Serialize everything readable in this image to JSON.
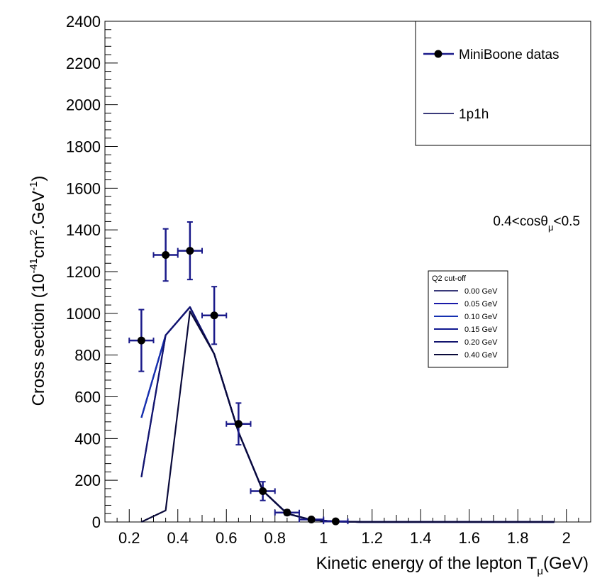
{
  "chart_data": {
    "type": "line",
    "xlabel": "Kinetic energy of the lepton T",
    "xlabel_sub": "μ",
    "xlabel_unit": "(GeV)",
    "ylabel_main": "Cross section (10",
    "ylabel_exp1": "-41",
    "ylabel_mid": "cm",
    "ylabel_exp2": "2",
    "ylabel_mid2": ".GeV",
    "ylabel_exp3": "-1",
    "ylabel_end": ")",
    "xlim": [
      0.1,
      2.1
    ],
    "ylim": [
      0,
      2400
    ],
    "x_ticks": [
      "0.2",
      "0.4",
      "0.6",
      "0.8",
      "1",
      "1.2",
      "1.4",
      "1.6",
      "1.8",
      "2"
    ],
    "x_tick_values": [
      0.2,
      0.4,
      0.6,
      0.8,
      1.0,
      1.2,
      1.4,
      1.6,
      1.8,
      2.0
    ],
    "y_ticks": [
      "0",
      "200",
      "400",
      "600",
      "800",
      "1000",
      "1200",
      "1400",
      "1600",
      "1800",
      "2000",
      "2200",
      "2400"
    ],
    "y_tick_values": [
      0,
      200,
      400,
      600,
      800,
      1000,
      1200,
      1400,
      1600,
      1800,
      2000,
      2200,
      2400
    ],
    "annotation": {
      "pre": "0.4<cosθ",
      "sub": "μ",
      "post": "<0.5"
    },
    "main_legend": [
      {
        "label": "MiniBoone datas",
        "marker": "circle"
      },
      {
        "label": "1p1h",
        "marker": "line"
      }
    ],
    "qcut_legend": {
      "title": "Q2 cut-off",
      "entries": [
        {
          "label": "0.00 GeV",
          "color": "#3a3a7a"
        },
        {
          "label": "0.05 GeV",
          "color": "#1a1aa8"
        },
        {
          "label": "0.10 GeV",
          "color": "#1530b0"
        },
        {
          "label": "0.15 GeV",
          "color": "#101890"
        },
        {
          "label": "0.20 GeV",
          "color": "#12146e"
        },
        {
          "label": "0.40 GeV",
          "color": "#0a0a3a"
        }
      ]
    },
    "data_points": {
      "name": "MiniBoone datas",
      "color": "#1a1a8a",
      "x": [
        0.25,
        0.35,
        0.45,
        0.55,
        0.65,
        0.75,
        0.85,
        0.95,
        1.05
      ],
      "y": [
        870,
        1280,
        1300,
        990,
        470,
        148,
        45,
        12,
        3
      ],
      "xerr": [
        0.05,
        0.05,
        0.05,
        0.05,
        0.05,
        0.05,
        0.05,
        0.05,
        0.05
      ],
      "yerr": [
        148,
        125,
        138,
        138,
        100,
        45,
        12,
        5,
        2
      ]
    },
    "series": [
      {
        "name": "0.00 GeV",
        "color": "#3a3a7a",
        "x": [
          0.25,
          0.35,
          0.45,
          0.55,
          0.65,
          0.75,
          0.85,
          0.95,
          1.05,
          1.15,
          1.95
        ],
        "y": [
          500,
          895,
          1030,
          805,
          430,
          150,
          40,
          10,
          2,
          0,
          0
        ]
      },
      {
        "name": "0.05 GeV",
        "color": "#1a1aa8",
        "x": [
          0.25,
          0.35,
          0.45,
          0.55,
          0.65,
          0.75,
          0.85,
          0.95,
          1.05,
          1.15,
          1.95
        ],
        "y": [
          500,
          895,
          1030,
          805,
          430,
          150,
          40,
          10,
          2,
          0,
          0
        ]
      },
      {
        "name": "0.10 GeV",
        "color": "#1530b0",
        "x": [
          0.25,
          0.35,
          0.45,
          0.55,
          0.65,
          0.75,
          0.85,
          0.95,
          1.05,
          1.15,
          1.95
        ],
        "y": [
          500,
          895,
          1030,
          805,
          430,
          150,
          40,
          10,
          2,
          0,
          0
        ]
      },
      {
        "name": "0.15 GeV",
        "color": "#101890",
        "x": [
          0.25,
          0.35,
          0.45,
          0.55,
          0.65,
          0.75,
          0.85,
          0.95,
          1.05,
          1.15,
          1.95
        ],
        "y": [
          215,
          895,
          1030,
          805,
          430,
          150,
          40,
          10,
          2,
          0,
          0
        ]
      },
      {
        "name": "0.20 GeV",
        "color": "#12146e",
        "x": [
          0.25,
          0.35,
          0.45,
          0.55,
          0.65,
          0.75,
          0.85,
          0.95,
          1.05,
          1.15,
          1.95
        ],
        "y": [
          215,
          895,
          1030,
          805,
          430,
          150,
          40,
          10,
          2,
          0,
          0
        ]
      },
      {
        "name": "0.40 GeV",
        "color": "#0a0a3a",
        "x": [
          0.25,
          0.35,
          0.45,
          0.55,
          0.65,
          0.75,
          0.85,
          0.95,
          1.05,
          1.15,
          1.95
        ],
        "y": [
          0,
          55,
          1010,
          805,
          430,
          150,
          40,
          10,
          2,
          0,
          0
        ]
      }
    ]
  }
}
